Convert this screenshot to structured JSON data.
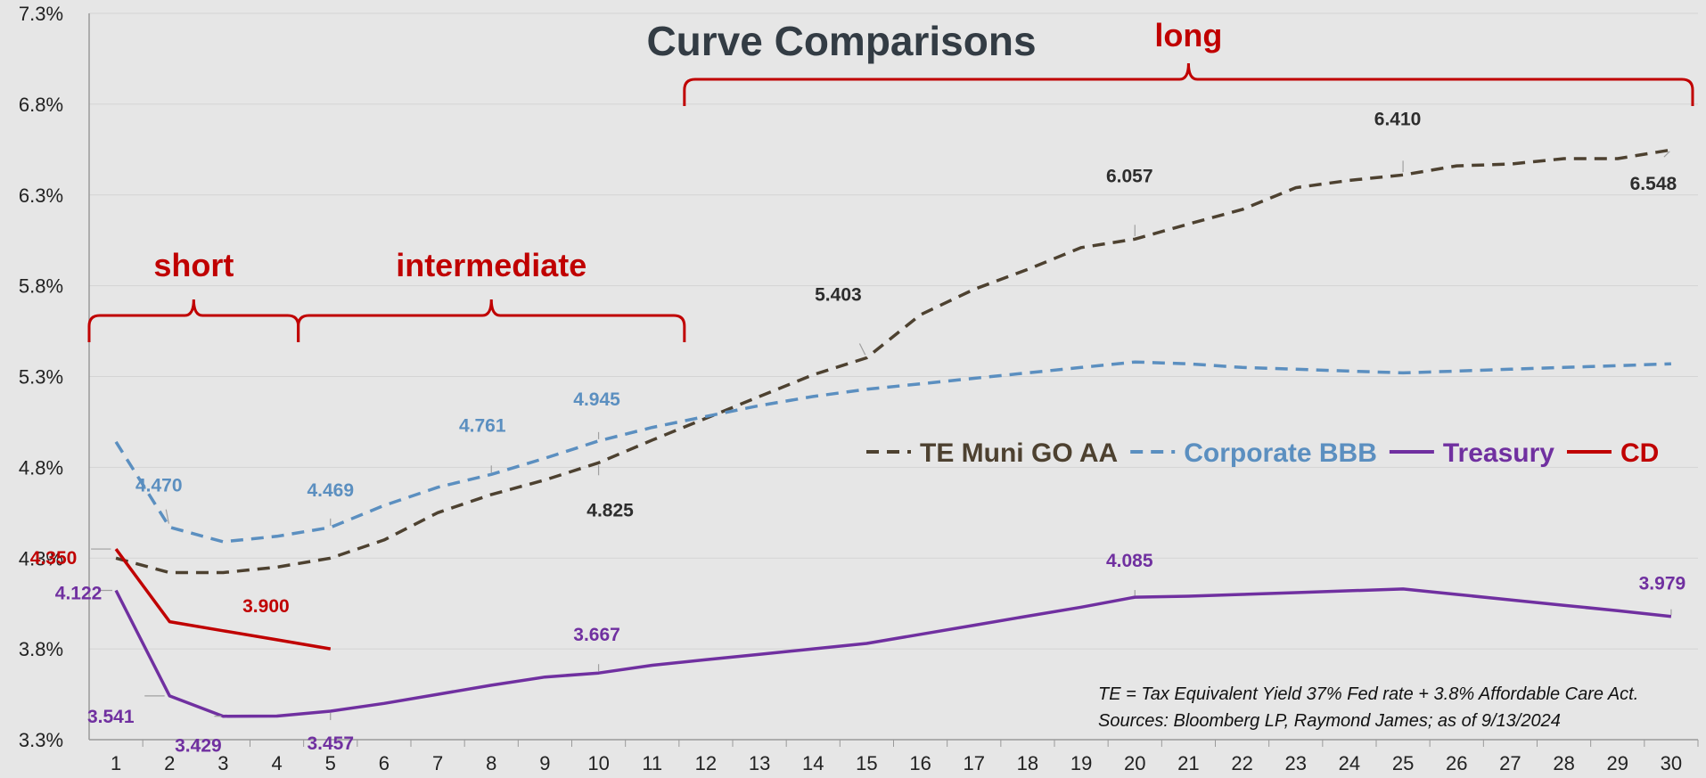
{
  "chart_data": {
    "type": "line",
    "title": "Curve Comparisons",
    "x": [
      1,
      2,
      3,
      4,
      5,
      6,
      7,
      8,
      9,
      10,
      11,
      12,
      13,
      14,
      15,
      16,
      17,
      18,
      19,
      20,
      21,
      22,
      23,
      24,
      25,
      26,
      27,
      28,
      29,
      30
    ],
    "ylim": [
      3.3,
      7.3
    ],
    "yticks": [
      3.3,
      3.8,
      4.3,
      4.8,
      5.3,
      5.8,
      6.3,
      6.8,
      7.3
    ],
    "ytick_labels": [
      "3.3%",
      "3.8%",
      "4.3%",
      "4.8%",
      "5.3%",
      "5.8%",
      "6.3%",
      "6.8%",
      "7.3%"
    ],
    "grid": true,
    "series": [
      {
        "name": "TE Muni GO AA",
        "color": "#4d4130",
        "dash": "dashed",
        "x": [
          1,
          2,
          3,
          4,
          5,
          6,
          7,
          8,
          9,
          10,
          11,
          12,
          13,
          14,
          15,
          16,
          17,
          18,
          19,
          20,
          21,
          22,
          23,
          24,
          25,
          26,
          27,
          28,
          29,
          30
        ],
        "values": [
          4.3,
          4.22,
          4.22,
          4.25,
          4.3,
          4.4,
          4.55,
          4.65,
          4.73,
          4.825,
          4.95,
          5.07,
          5.19,
          5.31,
          5.403,
          5.64,
          5.78,
          5.89,
          6.01,
          6.057,
          6.14,
          6.22,
          6.34,
          6.38,
          6.41,
          6.46,
          6.47,
          6.5,
          6.5,
          6.548
        ]
      },
      {
        "name": "Corporate BBB",
        "color": "#5b8fc0",
        "dash": "dashed",
        "x": [
          1,
          2,
          3,
          4,
          5,
          6,
          7,
          8,
          9,
          10,
          11,
          12,
          13,
          14,
          15,
          16,
          17,
          18,
          19,
          20,
          21,
          22,
          23,
          24,
          25,
          26,
          27,
          28,
          29,
          30
        ],
        "values": [
          4.94,
          4.47,
          4.39,
          4.42,
          4.469,
          4.59,
          4.69,
          4.761,
          4.85,
          4.945,
          5.02,
          5.08,
          5.14,
          5.19,
          5.23,
          5.26,
          5.29,
          5.32,
          5.35,
          5.38,
          5.37,
          5.35,
          5.34,
          5.33,
          5.32,
          5.33,
          5.34,
          5.35,
          5.36,
          5.37
        ]
      },
      {
        "name": "Treasury",
        "color": "#7030a0",
        "dash": "solid",
        "x": [
          1,
          2,
          3,
          4,
          5,
          6,
          7,
          8,
          9,
          10,
          11,
          12,
          13,
          14,
          15,
          16,
          17,
          18,
          19,
          20,
          21,
          22,
          23,
          24,
          25,
          26,
          27,
          28,
          29,
          30
        ],
        "values": [
          4.122,
          3.541,
          3.429,
          3.43,
          3.457,
          3.5,
          3.55,
          3.6,
          3.645,
          3.667,
          3.71,
          3.74,
          3.77,
          3.8,
          3.83,
          3.88,
          3.93,
          3.98,
          4.03,
          4.085,
          4.09,
          4.1,
          4.11,
          4.12,
          4.13,
          4.1,
          4.07,
          4.04,
          4.01,
          3.979
        ]
      },
      {
        "name": "CD",
        "color": "#c00000",
        "dash": "solid",
        "x": [
          1,
          2,
          3,
          4,
          5
        ],
        "values": [
          4.35,
          3.95,
          3.9,
          3.85,
          3.8
        ]
      }
    ],
    "data_labels": [
      {
        "series": 0,
        "x": 10,
        "text": "4.825"
      },
      {
        "series": 0,
        "x": 15,
        "text": "5.403"
      },
      {
        "series": 0,
        "x": 20,
        "text": "6.057"
      },
      {
        "series": 0,
        "x": 25,
        "text": "6.410"
      },
      {
        "series": 0,
        "x": 30,
        "text": "6.548"
      },
      {
        "series": 1,
        "x": 2,
        "text": "4.470"
      },
      {
        "series": 1,
        "x": 5,
        "text": "4.469"
      },
      {
        "series": 1,
        "x": 8,
        "text": "4.761"
      },
      {
        "series": 1,
        "x": 10,
        "text": "4.945"
      },
      {
        "series": 2,
        "x": 1,
        "text": "4.122"
      },
      {
        "series": 2,
        "x": 2,
        "text": "3.541"
      },
      {
        "series": 2,
        "x": 3,
        "text": "3.429"
      },
      {
        "series": 2,
        "x": 5,
        "text": "3.457"
      },
      {
        "series": 2,
        "x": 10,
        "text": "3.667"
      },
      {
        "series": 2,
        "x": 20,
        "text": "4.085"
      },
      {
        "series": 2,
        "x": 30,
        "text": "3.979"
      },
      {
        "series": 3,
        "x": 1,
        "text": "4.350"
      },
      {
        "series": 3,
        "x": 3,
        "text": "3.900"
      }
    ],
    "annotations": [
      {
        "text": "short",
        "from": 0.5,
        "to": 4.4
      },
      {
        "text": "intermediate",
        "from": 4.4,
        "to": 11.6
      },
      {
        "text": "long",
        "from": 11.6,
        "to": 30.4
      }
    ],
    "legend": "center-right",
    "notes": [
      "TE = Tax Equivalent Yield 37%  Fed rate + 3.8% Affordable Care Act.",
      "Sources: Bloomberg LP, Raymond James; as of  9/13/2024"
    ]
  }
}
